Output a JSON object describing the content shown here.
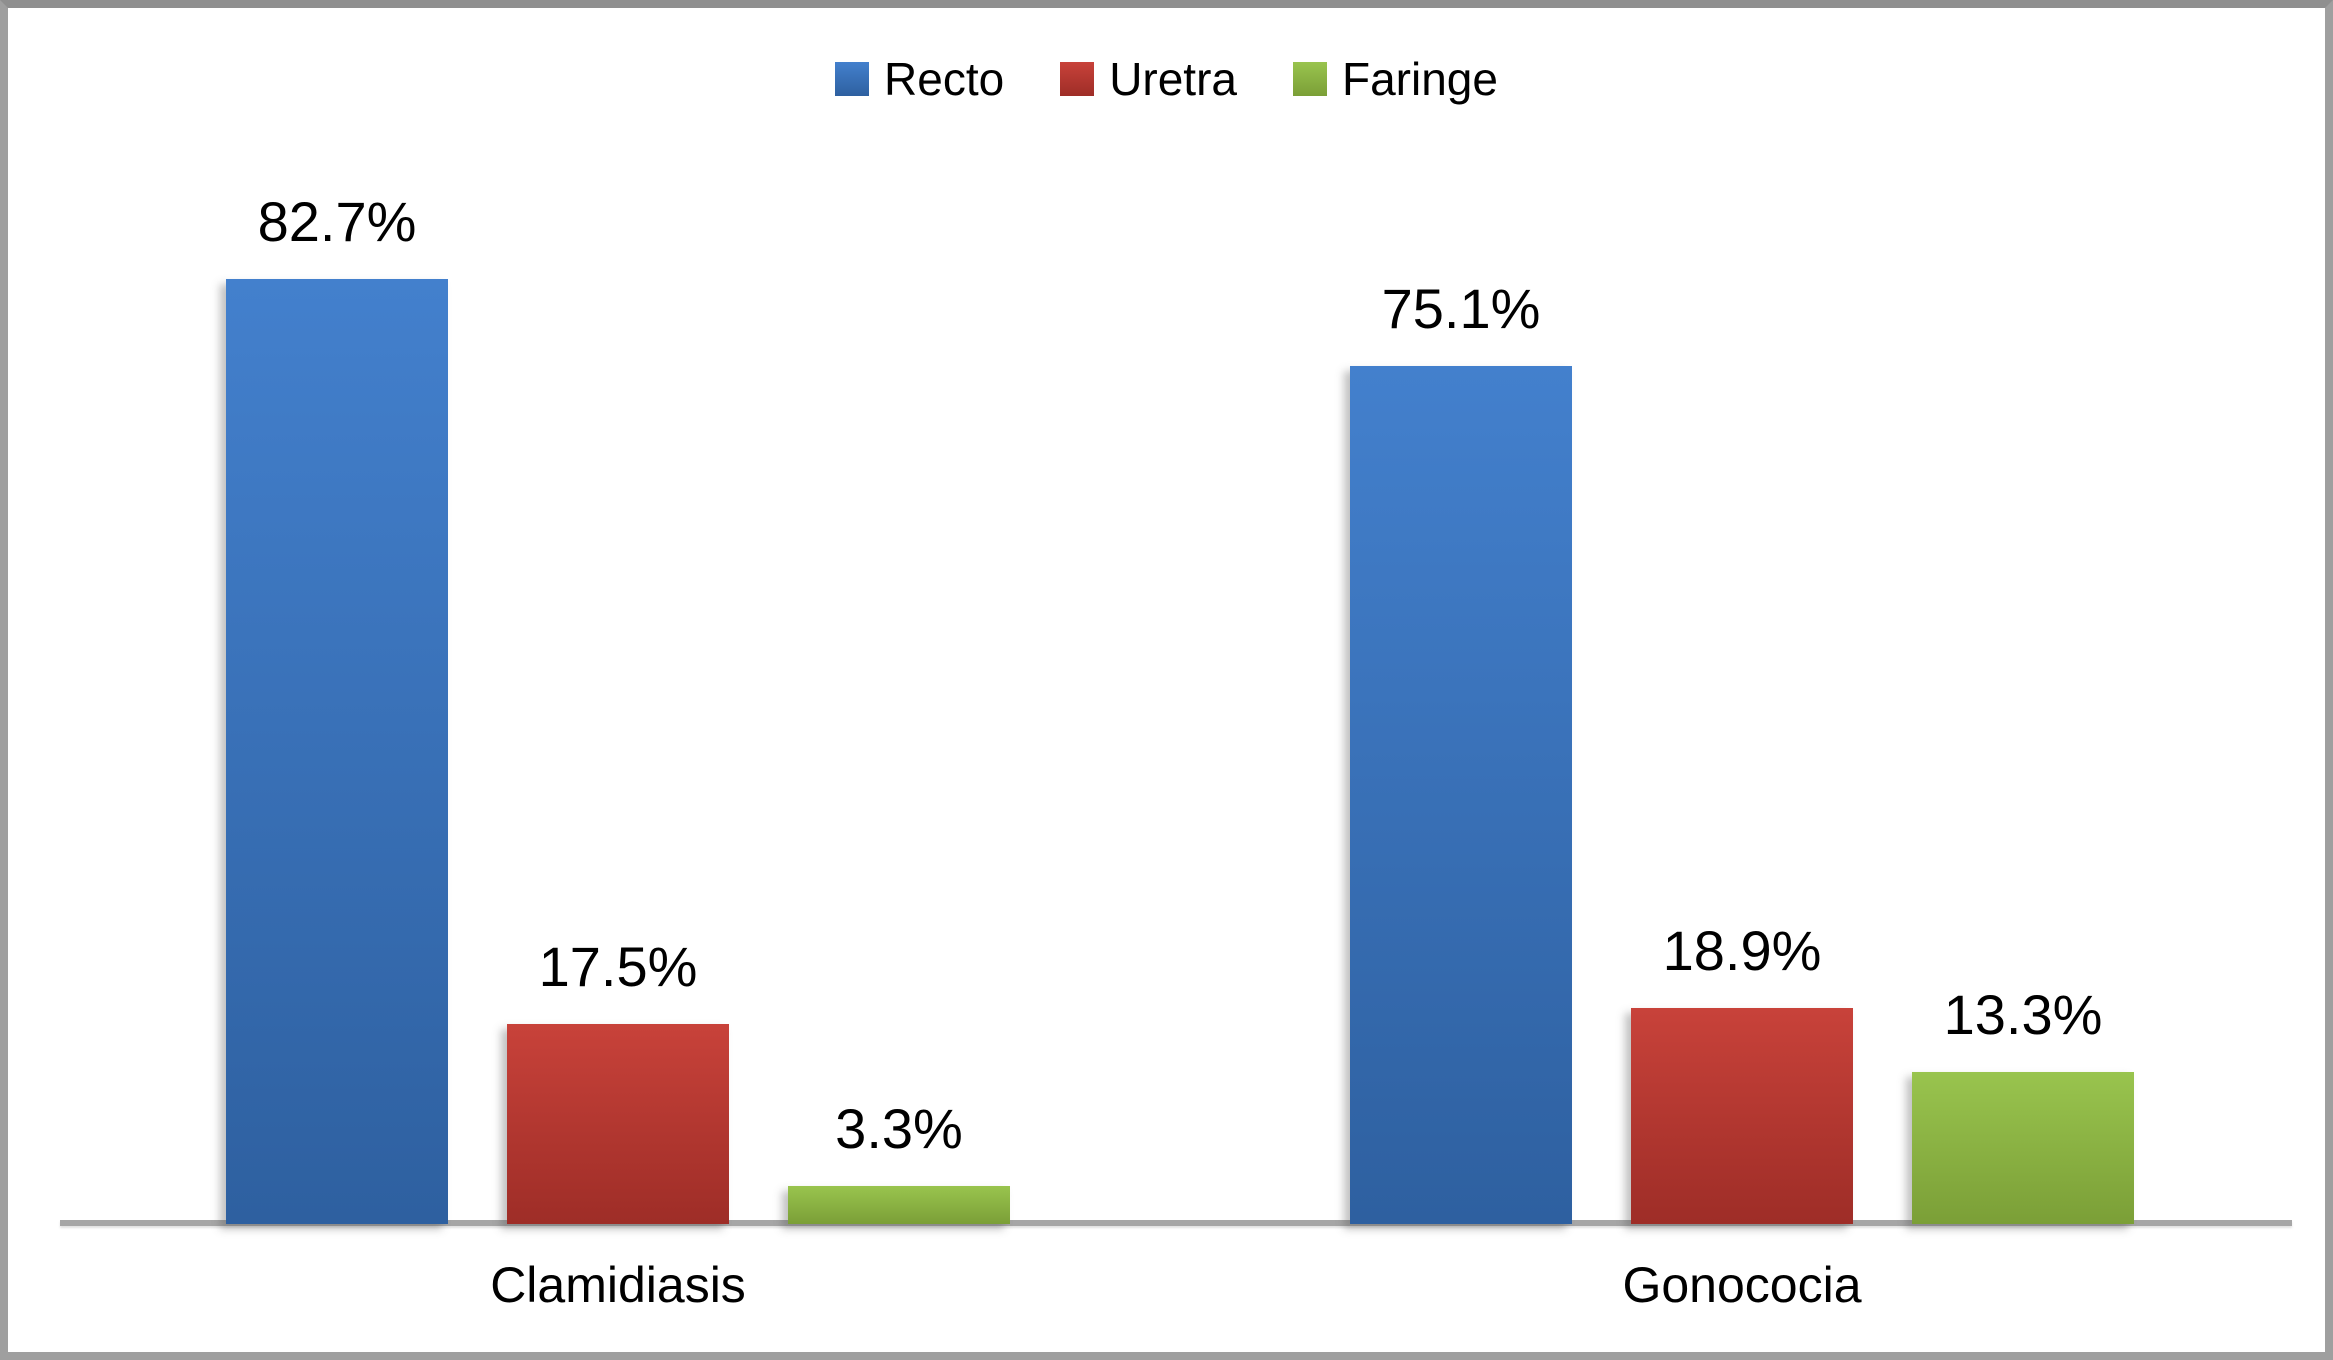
{
  "chart_data": {
    "type": "bar",
    "title": "",
    "categories": [
      "Clamidiasis",
      "Gonococia"
    ],
    "series": [
      {
        "name": "Recto",
        "values": [
          82.7,
          75.1
        ],
        "labels": [
          "82.7%",
          "75.1%"
        ],
        "color_top": "#4380cd",
        "color_bottom": "#2e60a0",
        "legend_color_top": "#447fd0",
        "legend_color": "#3b74be"
      },
      {
        "name": "Uretra",
        "values": [
          17.5,
          18.9
        ],
        "labels": [
          "17.5%",
          "18.9%"
        ],
        "color_top": "#c8423a",
        "color_bottom": "#9e2d27",
        "legend_color": "#be352e"
      },
      {
        "name": "Faringe",
        "values": [
          3.3,
          13.3
        ],
        "labels": [
          "3.3%",
          "13.3%"
        ],
        "color_top": "#99c44e",
        "color_bottom": "#7b9f37",
        "legend_color": "#8ebc40"
      }
    ],
    "value_suffix": "%",
    "legend_position": "top",
    "grid": false,
    "axis": {
      "y_axis_visible": false,
      "x_axis_line_color": "#a6a6a6",
      "x_labels": [
        "Clamidiasis",
        "Gonococia"
      ]
    }
  }
}
